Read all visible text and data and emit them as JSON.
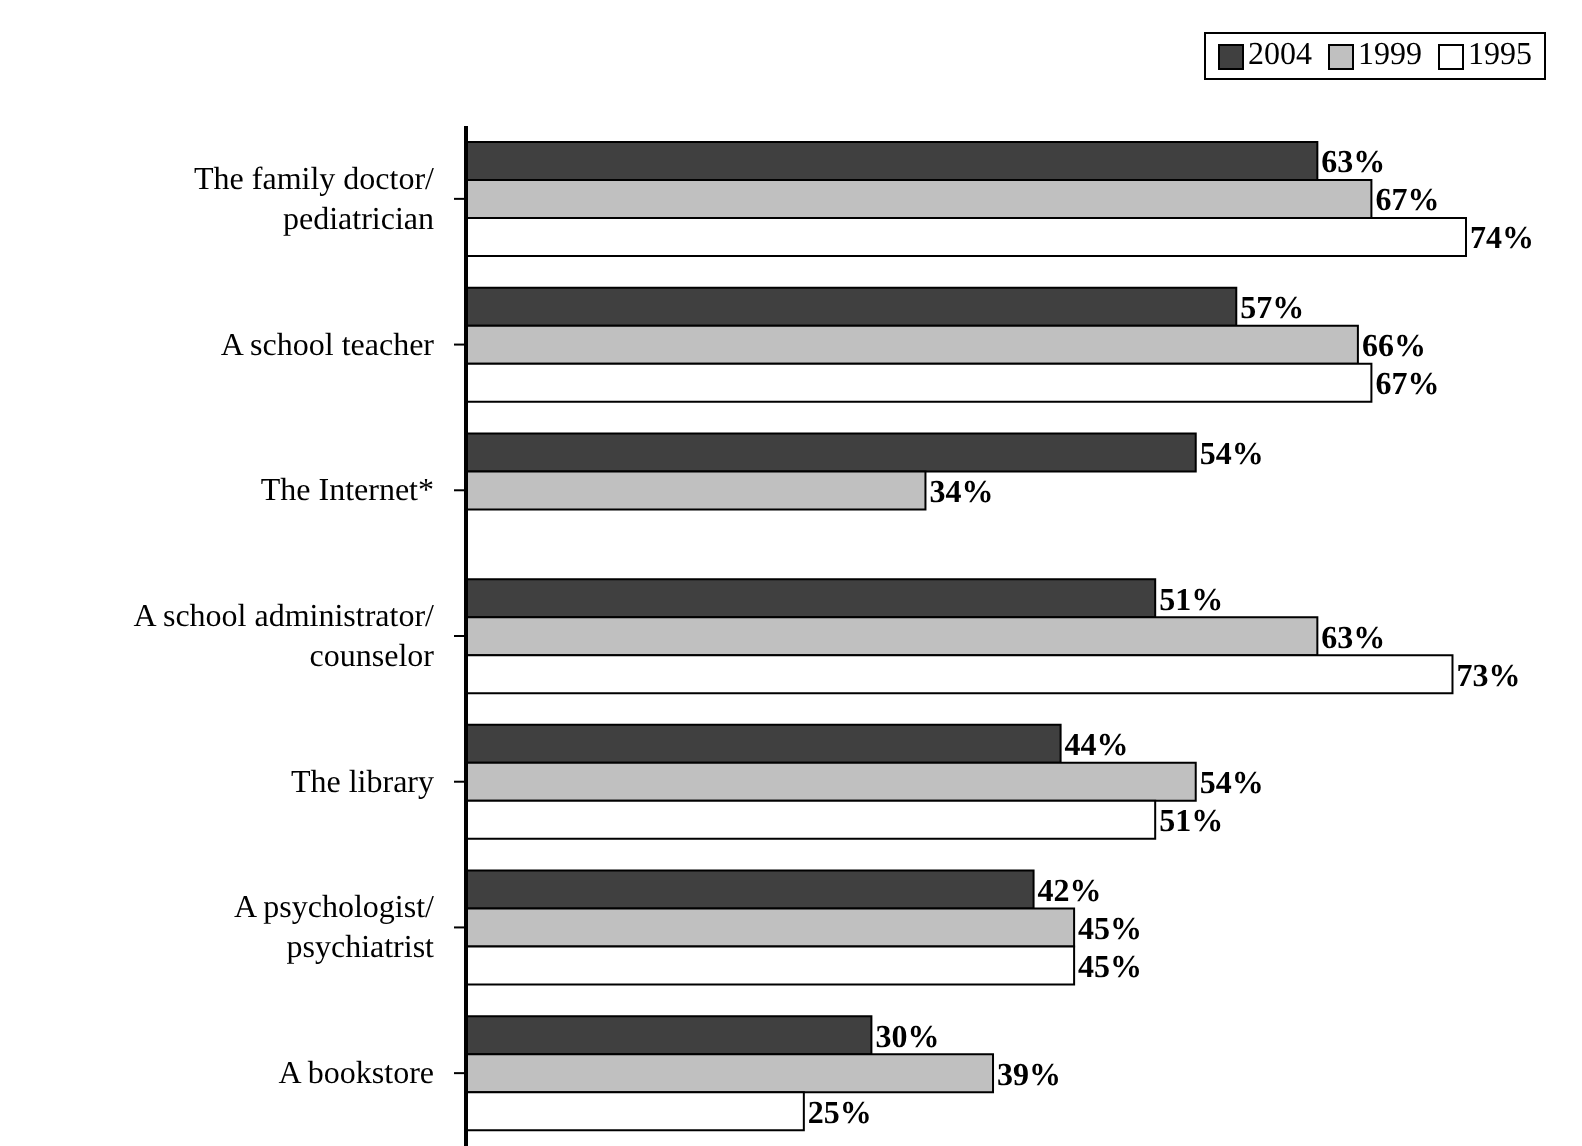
{
  "chart_data": {
    "type": "bar",
    "orientation": "horizontal",
    "categories": [
      "The family doctor/\npediatrician",
      "A school teacher",
      "The Internet*",
      "A school administrator/\ncounselor",
      "The library",
      "A psychologist/\npsychiatrist",
      "A bookstore"
    ],
    "series": [
      {
        "name": "2004",
        "color": "#404040",
        "values": [
          63,
          57,
          54,
          51,
          44,
          42,
          30
        ],
        "value_labels": [
          "63%",
          "57%",
          "54%",
          "51%",
          "44%",
          "42%",
          "30%"
        ]
      },
      {
        "name": "1999",
        "color": "#c0c0c0",
        "values": [
          67,
          66,
          34,
          63,
          54,
          45,
          39
        ],
        "value_labels": [
          "67%",
          "66%",
          "34%",
          "63%",
          "54%",
          "45%",
          "39%"
        ]
      },
      {
        "name": "1995",
        "color": "#ffffff",
        "values": [
          74,
          67,
          null,
          73,
          51,
          45,
          25
        ],
        "value_labels": [
          "74%",
          "67%",
          null,
          "73%",
          "51%",
          "45%",
          "25%"
        ]
      }
    ],
    "legend": "top right"
  }
}
